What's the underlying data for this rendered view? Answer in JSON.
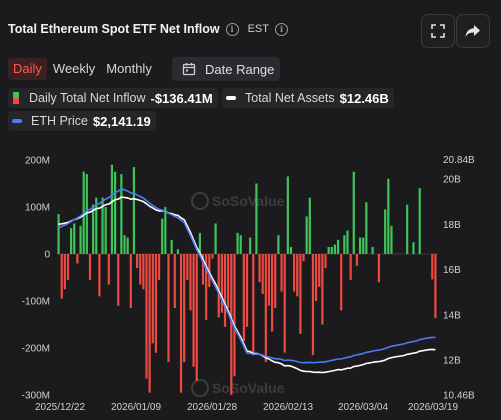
{
  "header": {
    "title": "Total Ethereum Spot ETF Net Inflow",
    "info_glyph": "i",
    "timezone": "EST",
    "icons": [
      "fullscreen-icon",
      "share-icon"
    ]
  },
  "tabs": [
    {
      "label": "Daily",
      "active": true
    },
    {
      "label": "Weekly",
      "active": false
    },
    {
      "label": "Monthly",
      "active": false
    }
  ],
  "date_range_label": "Date Range",
  "legend": {
    "inflow_label": "Daily Total Net Inflow",
    "inflow_value": "-$136.41M",
    "assets_label": "Total Net Assets",
    "assets_value": "$12.46B",
    "price_label": "ETH Price",
    "price_value": "$2,141.19"
  },
  "watermark": "SoSoValue",
  "colors": {
    "positive_bar": "#3ec55a",
    "negative_bar": "#ef4a42",
    "assets_line": "#ffffff",
    "price_line": "#4a7df2",
    "background": "#1b1b1d"
  },
  "chart_data": {
    "type": "bar",
    "left_axis_ticks": [
      "200M",
      "100M",
      "0",
      "-100M",
      "-200M",
      "-300M"
    ],
    "left_axis_range": [
      -300,
      200
    ],
    "right_axis_ticks": [
      "20.84B",
      "20B",
      "18B",
      "16B",
      "14B",
      "12B",
      "10.46B"
    ],
    "right_axis_range": [
      10.46,
      20.84
    ],
    "x_tick_labels": [
      "2025/12/22",
      "2026/01/09",
      "2026/01/28",
      "2026/02/13",
      "2026/03/04",
      "2026/03/19"
    ],
    "series": [
      {
        "name": "Daily Total Net Inflow",
        "values": [
          85,
          -95,
          -75,
          -55,
          55,
          65,
          -20,
          60,
          175,
          170,
          -55,
          105,
          120,
          -90,
          120,
          100,
          -65,
          190,
          175,
          -110,
          170,
          40,
          35,
          -115,
          185,
          -30,
          -65,
          -75,
          -265,
          -295,
          -190,
          -210,
          -55,
          75,
          100,
          -230,
          30,
          -115,
          10,
          -295,
          -230,
          -55,
          -120,
          -240,
          -270,
          45,
          -65,
          -140,
          -70,
          -10,
          65,
          -135,
          -125,
          -155,
          -115,
          -300,
          -260,
          45,
          40,
          -185,
          -155,
          35,
          -210,
          150,
          -60,
          -85,
          -230,
          -110,
          -165,
          -115,
          40,
          -80,
          -210,
          165,
          15,
          -80,
          -90,
          -170,
          -15,
          80,
          120,
          -215,
          -100,
          -70,
          -150,
          -30,
          15,
          15,
          20,
          30,
          -120,
          40,
          50,
          -55,
          175,
          -25,
          35,
          35,
          110,
          0,
          15,
          0,
          -60,
          0,
          95,
          160,
          60,
          0,
          0,
          0,
          0,
          105,
          0,
          25,
          0,
          140,
          0,
          0,
          0,
          -54,
          -136.41
        ]
      },
      {
        "name": "Total Net Assets",
        "x": [
          "2025/12/22",
          "2026/01/09",
          "2026/01/28",
          "2026/02/13",
          "2026/03/04",
          "2026/03/19"
        ],
        "values": [
          18.0,
          19.2,
          18.2,
          12.4,
          11.5,
          12.46
        ]
      },
      {
        "name": "ETH Price",
        "x": [
          "2025/12/22",
          "2026/01/09",
          "2026/01/28",
          "2026/02/13",
          "2026/03/04",
          "2026/03/19"
        ],
        "values": [
          2980,
          3280,
          3020,
          2020,
          1950,
          2141.19
        ]
      }
    ]
  }
}
